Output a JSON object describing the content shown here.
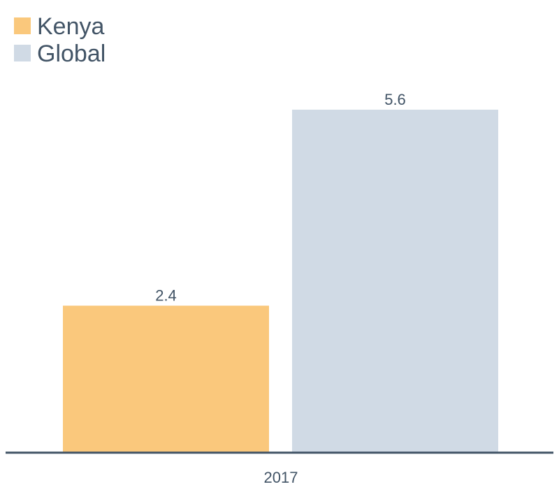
{
  "chart_data": {
    "type": "bar",
    "categories": [
      "2017"
    ],
    "series": [
      {
        "name": "Kenya",
        "values": [
          2.4
        ],
        "color": "#FAC87C"
      },
      {
        "name": "Global",
        "values": [
          5.6
        ],
        "color": "#D0DAE5"
      }
    ],
    "title": "",
    "xlabel": "",
    "ylabel": "",
    "ylim": [
      0,
      5.6
    ],
    "grid": false,
    "legend_position": "top-left",
    "axis_color": "#425466",
    "text_color": "#425466"
  }
}
